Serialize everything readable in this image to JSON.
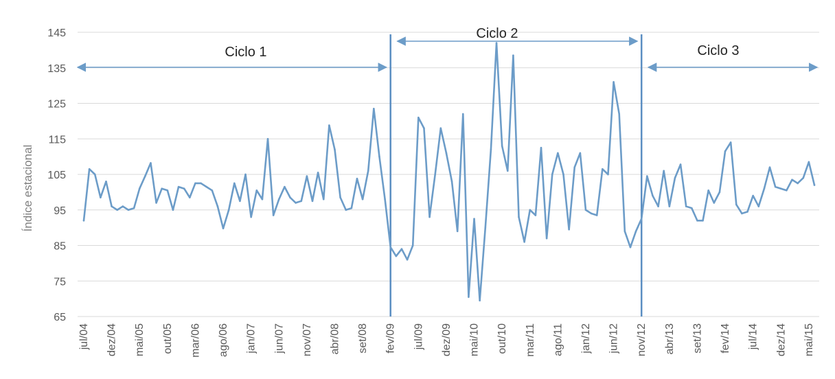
{
  "chart_data": {
    "type": "line",
    "ylabel": "Índice estacional",
    "xlabel": "",
    "ylim": [
      65,
      145
    ],
    "yticks": [
      65,
      75,
      85,
      95,
      105,
      115,
      125,
      135,
      145
    ],
    "grid": true,
    "legend": "none",
    "x_start": "jul/04",
    "x_end": "jul/15",
    "x_tick_labels": [
      "jul/04",
      "dez/04",
      "mai/05",
      "out/05",
      "mar/06",
      "ago/06",
      "jan/07",
      "jun/07",
      "nov/07",
      "abr/08",
      "set/08",
      "fev/09",
      "jul/09",
      "dez/09",
      "mai/10",
      "out/10",
      "mar/11",
      "ago/11",
      "jan/12",
      "jun/12",
      "nov/12",
      "abr/13",
      "set/13",
      "fev/14",
      "jul/14",
      "dez/14",
      "mai/15"
    ],
    "series": [
      {
        "values": [
          92,
          106.5,
          105,
          98.5,
          103,
          96,
          95,
          96,
          95,
          95.5,
          101,
          104.5,
          108.2,
          97,
          101,
          100.5,
          95,
          101.5,
          101,
          98.5,
          102.5,
          102.5,
          101.5,
          100.5,
          96,
          89.8,
          95,
          102.5,
          97.5,
          105,
          93,
          100.5,
          98,
          115,
          93.5,
          98,
          101.5,
          98.5,
          97,
          97.5,
          104.5,
          97.5,
          105.5,
          98,
          118.8,
          112,
          98.5,
          95,
          95.5,
          103.8,
          98,
          106,
          123.5,
          110,
          98,
          84.5,
          82,
          84,
          81,
          85,
          121,
          118,
          93,
          105,
          118,
          111,
          103,
          89,
          122,
          70.5,
          92.5,
          69.5,
          90,
          112,
          142,
          113,
          106,
          138.5,
          93,
          86,
          95,
          93.5,
          112.5,
          87,
          105,
          111,
          105,
          89.5,
          107,
          111,
          95,
          94,
          93.5,
          106.5,
          105,
          131,
          122,
          89,
          84.5,
          89,
          92.5,
          104.5,
          99,
          96,
          106,
          96,
          104,
          107.8,
          96,
          95.5,
          92,
          92,
          100.5,
          97,
          100,
          111.5,
          114,
          96.5,
          94,
          94.5,
          99,
          96,
          101,
          107,
          101.5,
          101,
          100.5,
          103.5,
          102.5,
          104,
          108.5,
          102
        ]
      }
    ],
    "color": "#6c9cc8",
    "annotations": [
      {
        "label": "Ciclo 1",
        "from": "jul/04",
        "to": "fev/09"
      },
      {
        "label": "Ciclo 2",
        "from": "fev/09",
        "to": "nov/12"
      },
      {
        "label": "Ciclo 3",
        "from": "nov/12",
        "to": "jul/15"
      }
    ],
    "dividers": [
      "fev/09",
      "nov/12"
    ]
  }
}
